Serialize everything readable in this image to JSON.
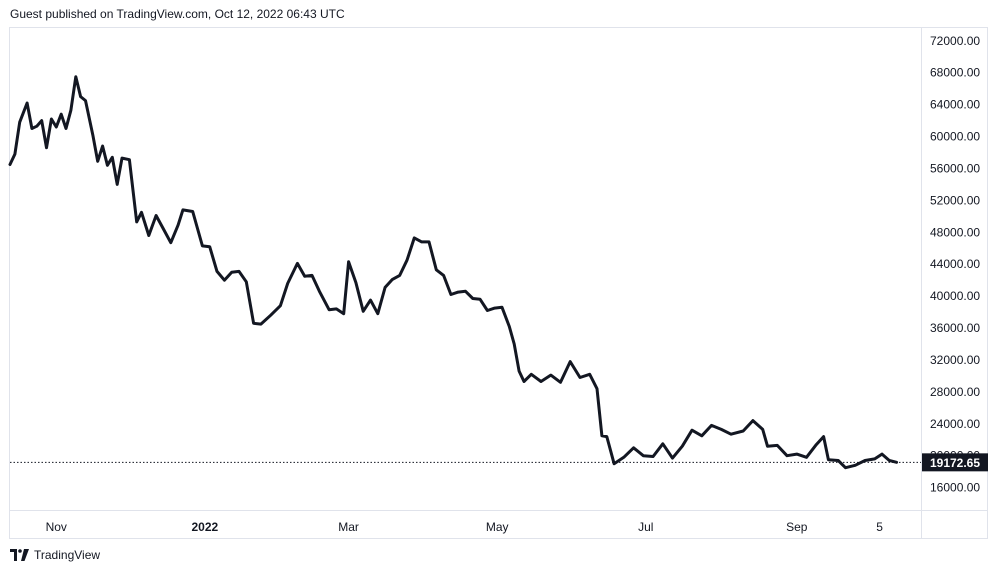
{
  "header": {
    "publisher_text": "Guest published on TradingView.com, Oct 12, 2022 06:43 UTC"
  },
  "footer": {
    "brand": "TradingView"
  },
  "colors": {
    "line": "#131722",
    "grid": "#e0e3eb",
    "axis_text": "#131722",
    "price_label_bg": "#131722",
    "price_label_text": "#ffffff"
  },
  "chart_data": {
    "type": "line",
    "title": "",
    "xlabel": "",
    "ylabel": "",
    "x_tick_labels": [
      "Nov",
      "2022",
      "Mar",
      "May",
      "Jul",
      "Sep",
      "5"
    ],
    "y_ticks": [
      16000,
      20000,
      24000,
      28000,
      32000,
      36000,
      40000,
      44000,
      48000,
      52000,
      56000,
      60000,
      64000,
      68000,
      72000
    ],
    "y_tick_labels": [
      "16000.00",
      "20000.00",
      "24000.00",
      "28000.00",
      "32000.00",
      "36000.00",
      "40000.00",
      "44000.00",
      "48000.00",
      "52000.00",
      "56000.00",
      "60000.00",
      "64000.00",
      "68000.00",
      "72000.00"
    ],
    "ylim": [
      13200,
      73600
    ],
    "x_range": [
      "2021-10-13",
      "2022-10-12"
    ],
    "grid": false,
    "last_price": 19172.65,
    "last_price_label": "19172.65",
    "series": [
      {
        "x": [
          "2021-10-13",
          "2021-10-15",
          "2021-10-17",
          "2021-10-20",
          "2021-10-22",
          "2021-10-24",
          "2021-10-26",
          "2021-10-28",
          "2021-10-30",
          "2021-11-01",
          "2021-11-03",
          "2021-11-05",
          "2021-11-07",
          "2021-11-09",
          "2021-11-11",
          "2021-11-13",
          "2021-11-16",
          "2021-11-18",
          "2021-11-20",
          "2021-11-22",
          "2021-11-24",
          "2021-11-26",
          "2021-11-28",
          "2021-12-01",
          "2021-12-04",
          "2021-12-06",
          "2021-12-09",
          "2021-12-12",
          "2021-12-15",
          "2021-12-18",
          "2021-12-21",
          "2021-12-23",
          "2021-12-27",
          "2021-12-31",
          "2022-01-03",
          "2022-01-06",
          "2022-01-09",
          "2022-01-12",
          "2022-01-15",
          "2022-01-18",
          "2022-01-21",
          "2022-01-24",
          "2022-01-28",
          "2022-02-01",
          "2022-02-04",
          "2022-02-08",
          "2022-02-11",
          "2022-02-14",
          "2022-02-17",
          "2022-02-21",
          "2022-02-24",
          "2022-02-27",
          "2022-03-01",
          "2022-03-04",
          "2022-03-07",
          "2022-03-10",
          "2022-03-13",
          "2022-03-16",
          "2022-03-19",
          "2022-03-22",
          "2022-03-25",
          "2022-03-28",
          "2022-03-31",
          "2022-04-03",
          "2022-04-06",
          "2022-04-09",
          "2022-04-12",
          "2022-04-15",
          "2022-04-18",
          "2022-04-21",
          "2022-04-24",
          "2022-04-27",
          "2022-04-30",
          "2022-05-03",
          "2022-05-06",
          "2022-05-08",
          "2022-05-10",
          "2022-05-12",
          "2022-05-15",
          "2022-05-19",
          "2022-05-23",
          "2022-05-27",
          "2022-05-31",
          "2022-06-04",
          "2022-06-08",
          "2022-06-11",
          "2022-06-13",
          "2022-06-15",
          "2022-06-18",
          "2022-06-22",
          "2022-06-26",
          "2022-06-30",
          "2022-07-04",
          "2022-07-08",
          "2022-07-12",
          "2022-07-16",
          "2022-07-20",
          "2022-07-24",
          "2022-07-28",
          "2022-08-01",
          "2022-08-05",
          "2022-08-10",
          "2022-08-14",
          "2022-08-18",
          "2022-08-20",
          "2022-08-24",
          "2022-08-28",
          "2022-09-01",
          "2022-09-05",
          "2022-09-09",
          "2022-09-12",
          "2022-09-14",
          "2022-09-18",
          "2022-09-21",
          "2022-09-25",
          "2022-09-29",
          "2022-10-03",
          "2022-10-06",
          "2022-10-09",
          "2022-10-12"
        ],
        "y": [
          56500,
          57800,
          61800,
          64200,
          61000,
          61300,
          62000,
          58600,
          62200,
          61200,
          62800,
          61000,
          63300,
          67500,
          65000,
          64500,
          60200,
          56900,
          58800,
          56400,
          57400,
          54000,
          57300,
          57100,
          49300,
          50500,
          47600,
          50100,
          48400,
          46700,
          48900,
          50800,
          50600,
          46300,
          46200,
          43100,
          42000,
          43000,
          43100,
          41800,
          36600,
          36500,
          37600,
          38800,
          41600,
          44100,
          42500,
          42600,
          40600,
          38300,
          38400,
          37800,
          44300,
          41700,
          38100,
          39500,
          37800,
          41100,
          42100,
          42600,
          44500,
          47300,
          46800,
          46800,
          43300,
          42600,
          40200,
          40500,
          40600,
          39700,
          39600,
          38200,
          38500,
          38600,
          36200,
          34000,
          30600,
          29300,
          30200,
          29300,
          30100,
          29200,
          31800,
          29800,
          30200,
          28400,
          22500,
          22400,
          19000,
          19800,
          21000,
          20000,
          19900,
          21500,
          19700,
          21200,
          23200,
          22500,
          23800,
          23300,
          22700,
          23100,
          24400,
          23300,
          21200,
          21300,
          20000,
          20200,
          19800,
          21400,
          22400,
          19500,
          19400,
          18500,
          18800,
          19400,
          19600,
          20200,
          19400,
          19172.65
        ]
      }
    ]
  }
}
